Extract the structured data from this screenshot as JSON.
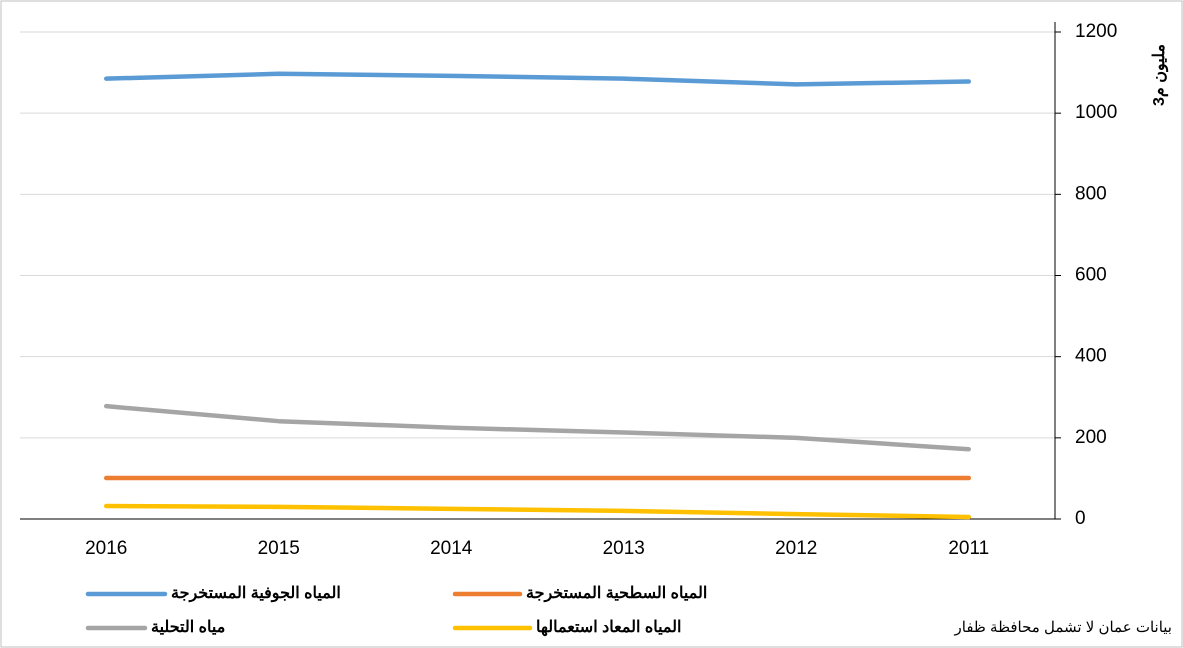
{
  "chart_data": {
    "type": "line",
    "y_axis_title": "مليون م3",
    "note": "بيانات عمان لا تشمل محافظة ظفار",
    "categories": [
      "2016",
      "2015",
      "2014",
      "2013",
      "2012",
      "2011"
    ],
    "series": [
      {
        "name": "المياه الجوفية المستخرجة",
        "color": "#5b9bd5",
        "values": [
          1085,
          1097,
          1092,
          1085,
          1071,
          1078
        ]
      },
      {
        "name": "المياه السطحية المستخرجة",
        "color": "#ed7d31",
        "values": [
          101,
          101,
          101,
          101,
          101,
          101
        ]
      },
      {
        "name": "مياه التحلية",
        "color": "#a5a5a5",
        "values": [
          278,
          241,
          225,
          213,
          200,
          172
        ]
      },
      {
        "name": "المياه المعاد استعمالها",
        "color": "#ffc000",
        "values": [
          32,
          30,
          25,
          20,
          12,
          5
        ]
      }
    ],
    "ylim": [
      0,
      1200
    ],
    "yticks": [
      0,
      200,
      400,
      600,
      800,
      1000,
      1200
    ],
    "grid": true,
    "y_axis_side": "right",
    "legend": "bottom"
  }
}
